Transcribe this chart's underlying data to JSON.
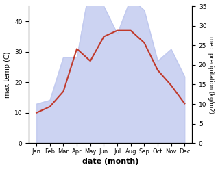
{
  "months": [
    "Jan",
    "Feb",
    "Mar",
    "Apr",
    "May",
    "Jun",
    "Jul",
    "Aug",
    "Sep",
    "Oct",
    "Nov",
    "Dec"
  ],
  "month_indices": [
    0,
    1,
    2,
    3,
    4,
    5,
    6,
    7,
    8,
    9,
    10,
    11
  ],
  "temperature": [
    10,
    12,
    17,
    31,
    27,
    35,
    37,
    37,
    33,
    24,
    19,
    13
  ],
  "precipitation": [
    10,
    11,
    22,
    22,
    41,
    35,
    28,
    37,
    34,
    21,
    24,
    17
  ],
  "temp_color": "#c0392b",
  "precip_fill_color": "#bcc5ee",
  "temp_ylim": [
    0,
    45
  ],
  "precip_ylim": [
    0,
    35
  ],
  "temp_yticks": [
    0,
    10,
    20,
    30,
    40
  ],
  "precip_yticks": [
    0,
    5,
    10,
    15,
    20,
    25,
    30,
    35
  ],
  "xlabel": "date (month)",
  "ylabel_left": "max temp (C)",
  "ylabel_right": "med. precipitation (kg/m2)",
  "background_color": "#ffffff"
}
